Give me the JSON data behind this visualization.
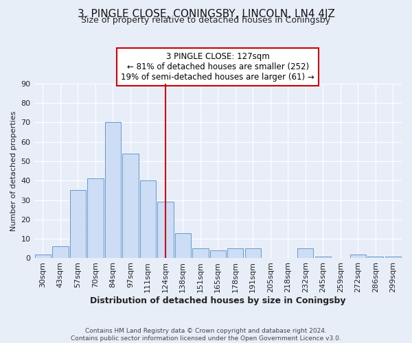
{
  "title": "3, PINGLE CLOSE, CONINGSBY, LINCOLN, LN4 4JZ",
  "subtitle": "Size of property relative to detached houses in Coningsby",
  "xlabel": "Distribution of detached houses by size in Coningsby",
  "ylabel": "Number of detached properties",
  "bar_labels": [
    "30sqm",
    "43sqm",
    "57sqm",
    "70sqm",
    "84sqm",
    "97sqm",
    "111sqm",
    "124sqm",
    "138sqm",
    "151sqm",
    "165sqm",
    "178sqm",
    "191sqm",
    "205sqm",
    "218sqm",
    "232sqm",
    "245sqm",
    "259sqm",
    "272sqm",
    "286sqm",
    "299sqm"
  ],
  "bar_heights": [
    2,
    6,
    35,
    41,
    70,
    54,
    40,
    29,
    13,
    5,
    4,
    5,
    5,
    0,
    0,
    5,
    1,
    0,
    2,
    1,
    1
  ],
  "bar_color": "#ccddf5",
  "bar_edge_color": "#6699cc",
  "vline_index": 7,
  "vline_color": "#cc0000",
  "annotation_line1": "3 PINGLE CLOSE: 127sqm",
  "annotation_line2": "← 81% of detached houses are smaller (252)",
  "annotation_line3": "19% of semi-detached houses are larger (61) →",
  "annotation_box_facecolor": "#ffffff",
  "annotation_box_edgecolor": "#cc0000",
  "ylim": [
    0,
    90
  ],
  "yticks": [
    0,
    10,
    20,
    30,
    40,
    50,
    60,
    70,
    80,
    90
  ],
  "footer_line1": "Contains HM Land Registry data © Crown copyright and database right 2024.",
  "footer_line2": "Contains public sector information licensed under the Open Government Licence v3.0.",
  "bg_color": "#e8eef8",
  "plot_bg_color": "#e8eef8",
  "grid_color": "#ffffff",
  "title_fontsize": 11,
  "subtitle_fontsize": 9,
  "xlabel_fontsize": 9,
  "ylabel_fontsize": 8,
  "tick_fontsize": 8
}
